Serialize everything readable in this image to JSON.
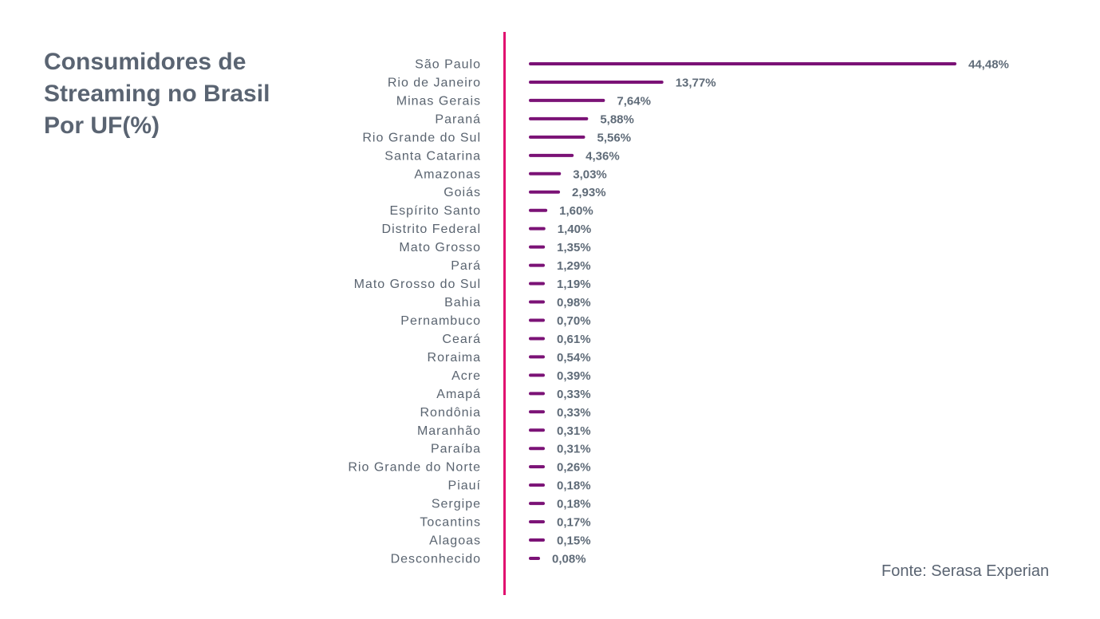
{
  "chart_data": {
    "type": "bar",
    "orientation": "horizontal",
    "title": "Consumidores de Streaming no Brasil Por UF(%)",
    "source": "Fonte: Serasa Experian",
    "bar_color": "#7b1276",
    "axis_color": "#e0106f",
    "categories": [
      "São Paulo",
      "Rio de Janeiro",
      "Minas Gerais",
      "Paraná",
      "Rio Grande do Sul",
      "Santa Catarina",
      "Amazonas",
      "Goiás",
      "Espírito Santo",
      "Distrito Federal",
      "Mato Grosso",
      "Pará",
      "Mato Grosso do Sul",
      "Bahia",
      "Pernambuco",
      "Ceará",
      "Roraima",
      "Acre",
      "Amapá",
      "Rondônia",
      "Maranhão",
      "Paraíba",
      "Rio Grande do Norte",
      "Piauí",
      "Sergipe",
      "Tocantins",
      "Alagoas",
      "Desconhecido"
    ],
    "values": [
      44.48,
      13.77,
      7.64,
      5.88,
      5.56,
      4.36,
      3.03,
      2.93,
      1.6,
      1.4,
      1.35,
      1.29,
      1.19,
      0.98,
      0.7,
      0.61,
      0.54,
      0.39,
      0.33,
      0.33,
      0.31,
      0.31,
      0.26,
      0.18,
      0.18,
      0.17,
      0.15,
      0.08
    ],
    "labels": [
      "44,48%",
      "13,77%",
      "7,64%",
      "5,88%",
      "5,56%",
      "4,36%",
      "3,03%",
      "2,93%",
      "1,60%",
      "1,40%",
      "1,35%",
      "1,29%",
      "1,19%",
      "0,98%",
      "0,70%",
      "0,61%",
      "0,54%",
      "0,39%",
      "0,33%",
      "0,33%",
      "0,31%",
      "0,31%",
      "0,26%",
      "0,18%",
      "0,18%",
      "0,17%",
      "0,15%",
      "0,08%"
    ],
    "xlabel": "",
    "ylabel": "",
    "grid": false
  }
}
